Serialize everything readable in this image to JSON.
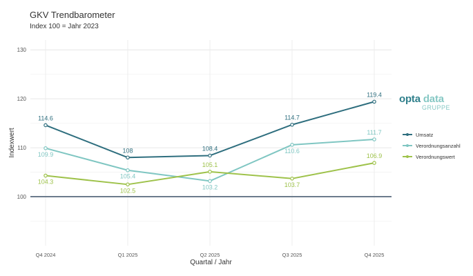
{
  "chart_data": {
    "type": "line",
    "title": "GKV Trendbarometer",
    "subtitle": "Index 100 = Jahr 2023",
    "xlabel": "Quartal / Jahr",
    "ylabel": "Indexwert",
    "categories": [
      "Q4 2024",
      "Q1 2025",
      "Q2 2025",
      "Q3 2025",
      "Q4 2025"
    ],
    "ylim": [
      90,
      132
    ],
    "yticks": [
      100,
      110,
      120,
      130
    ],
    "reference_line": 100,
    "grid": true,
    "legend_position": "right",
    "series": [
      {
        "name": "Umsatz",
        "color": "#2e6e7e",
        "values": [
          114.6,
          108,
          108.4,
          114.7,
          119.4
        ],
        "labels": [
          "114.6",
          "108",
          "108.4",
          "114.7",
          "119.4"
        ]
      },
      {
        "name": "Verordnungsanzahl",
        "color": "#7fc6c2",
        "values": [
          109.9,
          105.4,
          103.2,
          110.6,
          111.7
        ],
        "labels": [
          "109.9",
          "105.4",
          "103.2",
          "110.6",
          "111.7"
        ]
      },
      {
        "name": "Verordnungswert",
        "color": "#9ec24a",
        "values": [
          104.3,
          102.5,
          105.1,
          103.7,
          106.9
        ],
        "labels": [
          "104.3",
          "102.5",
          "105.1",
          "103.7",
          "106.9"
        ]
      }
    ]
  },
  "logo": {
    "word1": "opta",
    "word2": "data",
    "sub": "GRUPPE"
  }
}
